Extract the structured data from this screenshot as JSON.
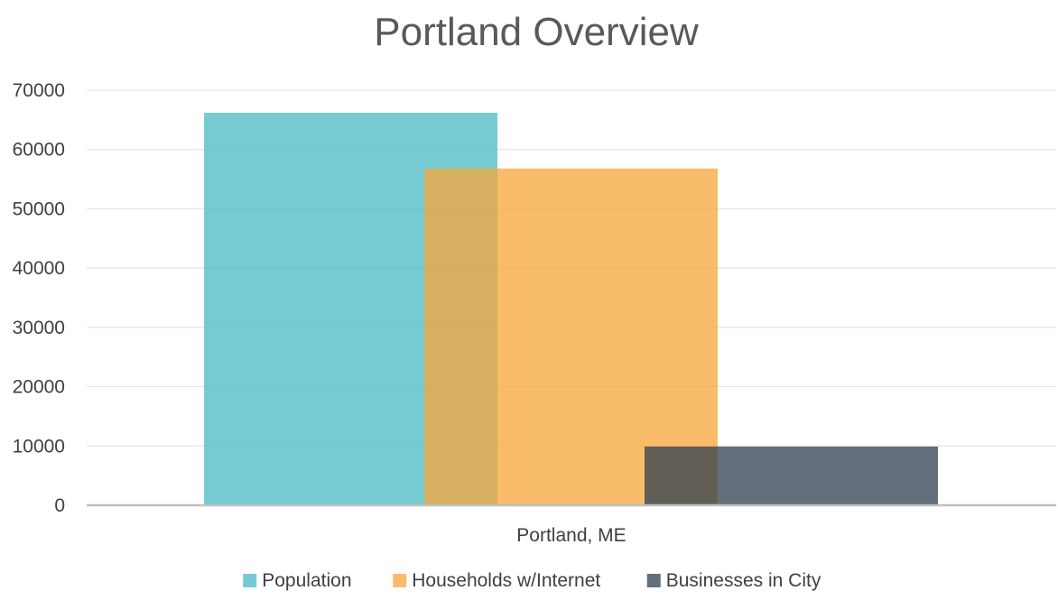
{
  "chart_data": {
    "type": "bar",
    "title": "Portland Overview",
    "categories": [
      "Portland, ME"
    ],
    "series": [
      {
        "name": "Population",
        "values": [
          66200
        ],
        "color": "#4BB8C3"
      },
      {
        "name": "Households w/Internet",
        "values": [
          56800
        ],
        "color": "#F6A53A"
      },
      {
        "name": "Businesses in City",
        "values": [
          9900
        ],
        "color": "#2F3F4E"
      }
    ],
    "y_ticks": [
      "0",
      "10000",
      "20000",
      "30000",
      "40000",
      "50000",
      "60000",
      "70000"
    ],
    "ylim": [
      0,
      70000
    ],
    "grid": true,
    "legend": "bottom",
    "bar_opacity": 0.75,
    "overlap": true
  }
}
